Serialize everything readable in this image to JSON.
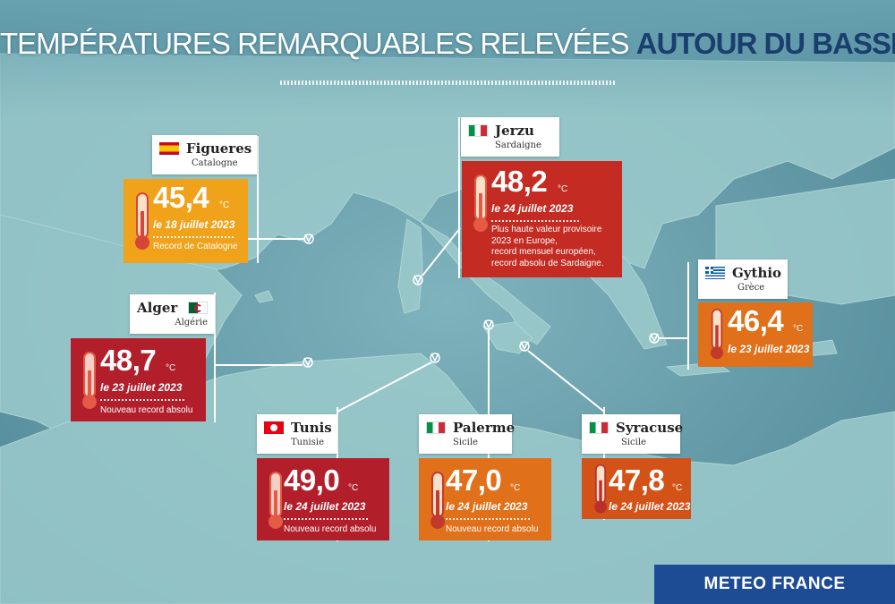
{
  "title": {
    "part1": "TEMPÉRATURES REMARQUABLES RELEVÉES",
    "part2": "AUTOUR DU BASSIN MÉDITERRANÉEN"
  },
  "unit": "°C",
  "colors": {
    "orange": "#f0a21a",
    "dark_orange": "#e07019",
    "red": "#c42b22",
    "crimson": "#b21f2b",
    "title_accent": "#1a3f6f",
    "brand": "#1d4b94"
  },
  "stations": [
    {
      "id": "figueres",
      "city": "Figueres",
      "region": "Catalogne",
      "flag": "spain-flag",
      "temp": "45,4",
      "date": "le 18 juillet 2023",
      "note": [
        "Record de Catalogne"
      ],
      "color": "orange"
    },
    {
      "id": "jerzu",
      "city": "Jerzu",
      "region": "Sardaigne",
      "flag": "italy-flag",
      "temp": "48,2",
      "date": "le 24 juillet 2023",
      "note": [
        "Plus haute valeur provisoire",
        "2023 en Europe,",
        "record mensuel européen,",
        "record absolu de Sardaigne."
      ],
      "color": "red"
    },
    {
      "id": "gythio",
      "city": "Gythio",
      "region": "Grèce",
      "flag": "greece-flag",
      "temp": "46,4",
      "date": "le 23 juillet 2023",
      "note": [],
      "color": "dark_orange"
    },
    {
      "id": "alger",
      "city": "Alger",
      "region": "Algérie",
      "flag": "algeria-flag",
      "temp": "48,7",
      "date": "le 23 juillet 2023",
      "note": [
        "Nouveau record absolu"
      ],
      "color": "crimson"
    },
    {
      "id": "tunis",
      "city": "Tunis",
      "region": "Tunisie",
      "flag": "tunisia-flag",
      "temp": "49,0",
      "date": "le 24 juillet 2023",
      "note": [
        "Nouveau record absolu"
      ],
      "color": "crimson"
    },
    {
      "id": "palerme",
      "city": "Palerme",
      "region": "Sicile",
      "flag": "italy-flag",
      "temp": "47,0",
      "date": "le 24 juillet 2023",
      "note": [
        "Nouveau record absolu"
      ],
      "color": "dark_orange"
    },
    {
      "id": "syracuse",
      "city": "Syracuse",
      "region": "Sicile",
      "flag": "italy-flag",
      "temp": "47,8",
      "date": "le 24 juillet 2023",
      "note": [],
      "color": "dark_orange"
    }
  ],
  "brand": "METEO FRANCE"
}
